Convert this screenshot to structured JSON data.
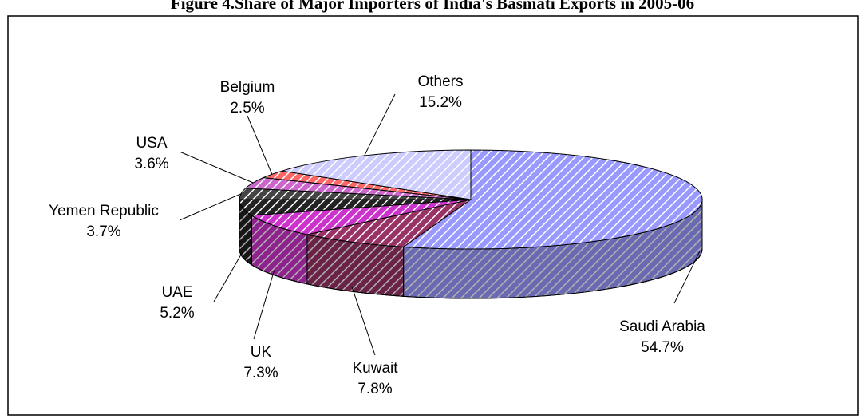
{
  "chart_data": {
    "type": "pie",
    "title": "Figure 4.Share of Major Importers of India's Basmati Exports in 2005-06",
    "categories": [
      "Saudi Arabia",
      "Kuwait",
      "UK",
      "UAE",
      "Yemen Republic",
      "USA",
      "Belgium",
      "Others"
    ],
    "values": [
      54.7,
      7.8,
      7.3,
      5.2,
      3.7,
      3.6,
      2.5,
      15.2
    ],
    "value_labels": [
      "54.7%",
      "7.8%",
      "7.3%",
      "5.2%",
      "3.7%",
      "3.6%",
      "2.5%",
      "15.2%"
    ],
    "colors": [
      "#9999ff",
      "#993366",
      "#cc33cc",
      "#222222",
      "#444444",
      "#cc66cc",
      "#ff6666",
      "#ccccff"
    ]
  }
}
